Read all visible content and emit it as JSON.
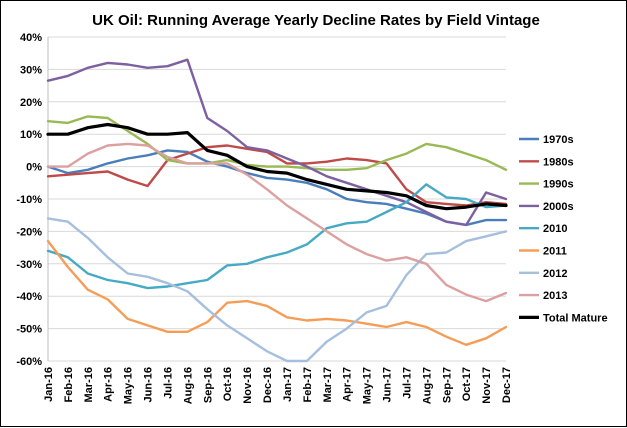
{
  "chart_data": {
    "type": "line",
    "title": "UK Oil: Running Average Yearly Decline Rates by Field Vintage",
    "xlabel": "",
    "ylabel": "",
    "ylim": [
      -60,
      40
    ],
    "yticks": [
      "40%",
      "30%",
      "20%",
      "10%",
      "0%",
      "-10%",
      "-20%",
      "-30%",
      "-40%",
      "-50%",
      "-60%"
    ],
    "grid": "horizontal",
    "legend_position": "right",
    "categories": [
      "Jan-16",
      "Feb-16",
      "Mar-16",
      "Apr-16",
      "May-16",
      "Jun-16",
      "Jul-16",
      "Aug-16",
      "Sep-16",
      "Oct-16",
      "Nov-16",
      "Dec-16",
      "Jan-17",
      "Feb-17",
      "Mar-17",
      "Apr-17",
      "May-17",
      "Jun-17",
      "Jul-17",
      "Aug-17",
      "Sep-17",
      "Oct-17",
      "Nov-17",
      "Dec-17"
    ],
    "series": [
      {
        "name": "1970s",
        "color": "#4a7ebb",
        "width": 2.4,
        "values": [
          0,
          -2,
          -1,
          1,
          2.5,
          3.5,
          5,
          4.5,
          1.5,
          0,
          -2,
          -3.5,
          -4,
          -5,
          -7,
          -10,
          -11,
          -11.5,
          -13,
          -14.5,
          -17,
          -18,
          -16.5,
          -16.5
        ]
      },
      {
        "name": "1980s",
        "color": "#be4b48",
        "width": 2.4,
        "values": [
          -3,
          -2.5,
          -2,
          -1.5,
          -4,
          -6,
          2,
          4,
          6,
          6.5,
          5.5,
          4.5,
          1,
          1,
          1.5,
          2.5,
          2,
          1,
          -7,
          -11,
          -11.5,
          -12,
          -11,
          -11.5
        ]
      },
      {
        "name": "1990s",
        "color": "#98b954",
        "width": 2.4,
        "values": [
          14,
          13.5,
          15.5,
          15,
          11,
          7,
          2,
          1,
          1,
          2,
          0.5,
          0,
          0,
          -0.5,
          -1,
          -1,
          -0.5,
          2,
          4,
          7,
          6,
          4,
          2,
          -1
        ]
      },
      {
        "name": "2000s",
        "color": "#7d60a0",
        "width": 2.4,
        "values": [
          26.5,
          28,
          30.5,
          32,
          31.5,
          30.5,
          31,
          33,
          15,
          11,
          6,
          5,
          2.5,
          0,
          -3,
          -5,
          -7,
          -9,
          -11,
          -14,
          -17,
          -18,
          -8,
          -10
        ]
      },
      {
        "name": "2010",
        "color": "#46aac5",
        "width": 2.4,
        "values": [
          -26,
          -28,
          -33,
          -35,
          -36,
          -37.5,
          -37,
          -36,
          -35,
          -30.5,
          -30,
          -28,
          -26.5,
          -24,
          -19,
          -17.5,
          -17,
          -14,
          -11,
          -5.5,
          -9.5,
          -10,
          -12.5,
          -12
        ]
      },
      {
        "name": "2011",
        "color": "#f59d56",
        "width": 2.4,
        "values": [
          -23,
          -31,
          -38,
          -41,
          -47,
          -49,
          -51,
          -51,
          -48,
          -42,
          -41.5,
          -43,
          -46.5,
          -47.5,
          -47,
          -47.5,
          -48.5,
          -49.5,
          -48,
          -49.5,
          -52.5,
          -55,
          -53,
          -49.5
        ]
      },
      {
        "name": "2012",
        "color": "#a5bfdd",
        "width": 2.4,
        "values": [
          -16,
          -17,
          -22,
          -28,
          -33,
          -34,
          -36,
          -38.5,
          -44,
          -49,
          -53,
          -57,
          -60,
          -60,
          -54,
          -50,
          -45,
          -43,
          -33.5,
          -27,
          -26.5,
          -23,
          -21.5,
          -20
        ]
      },
      {
        "name": "2013",
        "color": "#dba09f",
        "width": 2.4,
        "values": [
          0,
          0,
          4,
          6.5,
          7,
          6.5,
          3,
          1,
          1,
          1,
          -2.5,
          -7,
          -12,
          -16,
          -20,
          -24,
          -27,
          -29,
          -28,
          -30,
          -36.5,
          -39.5,
          -41.5,
          -39
        ]
      },
      {
        "name": "Total Mature",
        "color": "#000000",
        "width": 3.2,
        "values": [
          10,
          10,
          12,
          13,
          12,
          10,
          10,
          10.5,
          5,
          3.5,
          0,
          -1.5,
          -2,
          -4,
          -5.5,
          -7,
          -7.5,
          -8,
          -9,
          -12,
          -13,
          -12.5,
          -11.5,
          -12
        ]
      }
    ]
  }
}
